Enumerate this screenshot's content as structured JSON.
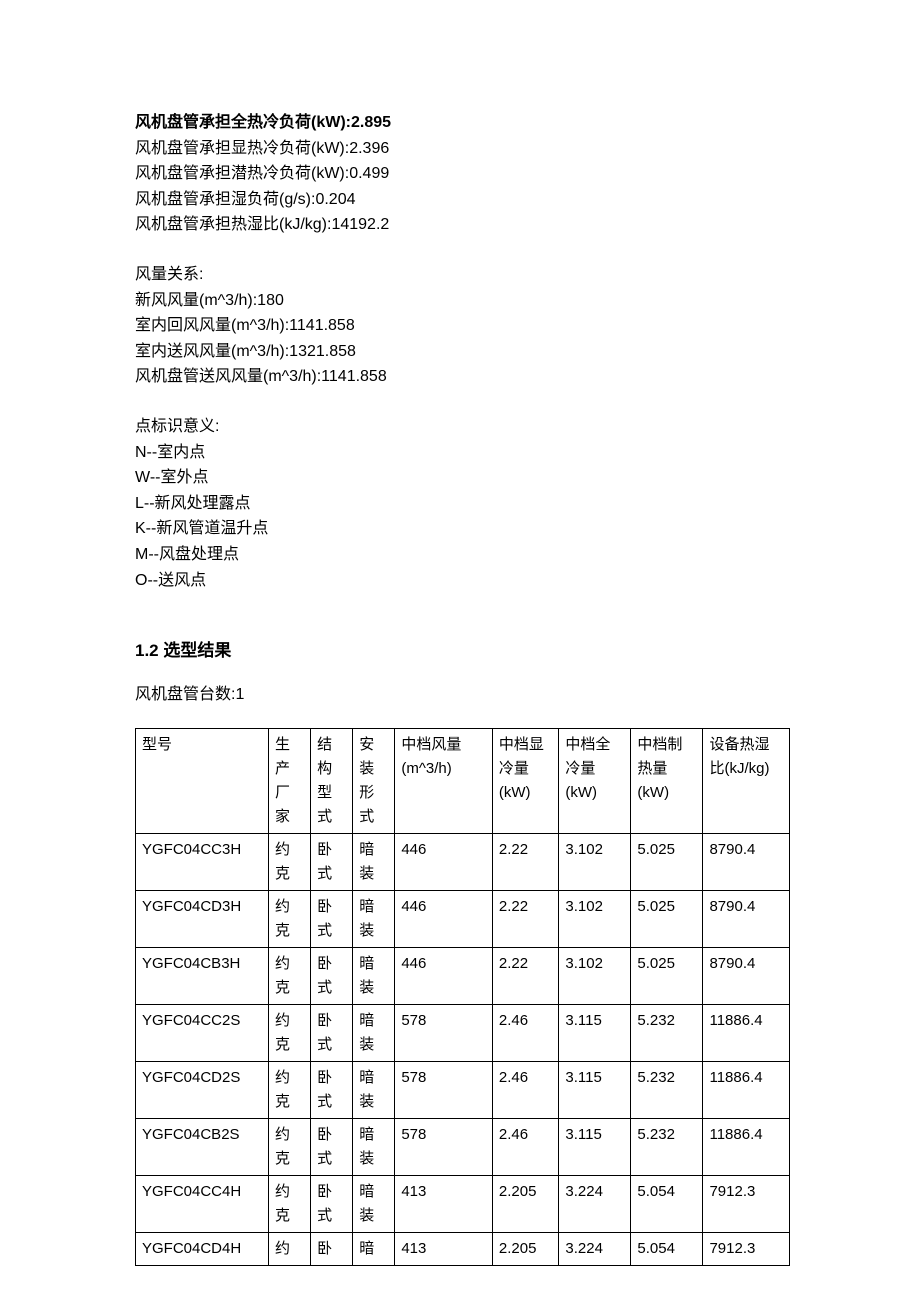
{
  "header": {
    "line1_bold": "风机盘管承担全热冷负荷(kW):2.895",
    "line2": "风机盘管承担显热冷负荷(kW):2.396",
    "line3": "风机盘管承担潜热冷负荷(kW):0.499",
    "line4": "风机盘管承担湿负荷(g/s):0.204",
    "line5": "风机盘管承担热湿比(kJ/kg):14192.2"
  },
  "airflow": {
    "title": "风量关系:",
    "l1": "新风风量(m^3/h):180",
    "l2": "室内回风风量(m^3/h):1141.858",
    "l3": "室内送风风量(m^3/h):1321.858",
    "l4": "风机盘管送风风量(m^3/h):1141.858"
  },
  "points": {
    "title": "点标识意义:",
    "p1": "N--室内点",
    "p2": "W--室外点",
    "p3": "L--新风处理露点",
    "p4": "K--新风管道温升点",
    "p5": "M--风盘处理点",
    "p6": "O--送风点"
  },
  "section": {
    "heading": "1.2  选型结果",
    "sub": "风机盘管台数:1"
  },
  "table": {
    "headers": {
      "c1": "型号",
      "c2": "生产厂家",
      "c3": "结构型式",
      "c4": "安装形式",
      "c5": "中档风量(m^3/h)",
      "c6": "中档显冷量(kW)",
      "c7": "中档全冷量(kW)",
      "c8": "中档制热量(kW)",
      "c9": "设备热湿比(kJ/kg)"
    },
    "rows": [
      {
        "c1": "YGFC04CC3H",
        "c2": "约克",
        "c3": "卧式",
        "c4": "暗装",
        "c5": "446",
        "c6": "2.22",
        "c7": "3.102",
        "c8": "5.025",
        "c9": "8790.4"
      },
      {
        "c1": "YGFC04CD3H",
        "c2": "约克",
        "c3": "卧式",
        "c4": "暗装",
        "c5": "446",
        "c6": "2.22",
        "c7": "3.102",
        "c8": "5.025",
        "c9": "8790.4"
      },
      {
        "c1": "YGFC04CB3H",
        "c2": "约克",
        "c3": "卧式",
        "c4": "暗装",
        "c5": "446",
        "c6": "2.22",
        "c7": "3.102",
        "c8": "5.025",
        "c9": "8790.4"
      },
      {
        "c1": "YGFC04CC2S",
        "c2": "约克",
        "c3": "卧式",
        "c4": "暗装",
        "c5": "578",
        "c6": "2.46",
        "c7": "3.115",
        "c8": "5.232",
        "c9": "11886.4"
      },
      {
        "c1": "YGFC04CD2S",
        "c2": "约克",
        "c3": "卧式",
        "c4": "暗装",
        "c5": "578",
        "c6": "2.46",
        "c7": "3.115",
        "c8": "5.232",
        "c9": "11886.4"
      },
      {
        "c1": "YGFC04CB2S",
        "c2": "约克",
        "c3": "卧式",
        "c4": "暗装",
        "c5": "578",
        "c6": "2.46",
        "c7": "3.115",
        "c8": "5.232",
        "c9": "11886.4"
      },
      {
        "c1": "YGFC04CC4H",
        "c2": "约克",
        "c3": "卧式",
        "c4": "暗装",
        "c5": "413",
        "c6": "2.205",
        "c7": "3.224",
        "c8": "5.054",
        "c9": "7912.3"
      },
      {
        "c1": "YGFC04CD4H",
        "c2": "约",
        "c3": "卧",
        "c4": "暗",
        "c5": "413",
        "c6": "2.205",
        "c7": "3.224",
        "c8": "5.054",
        "c9": "7912.3"
      }
    ]
  }
}
